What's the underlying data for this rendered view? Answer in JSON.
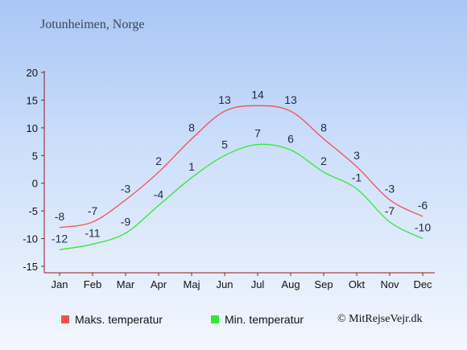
{
  "page": {
    "background_colors": [
      "#a9c6f5",
      "#f3f7fe"
    ]
  },
  "copyright": "© MitRejseVejr.dk",
  "chart_data": {
    "type": "line",
    "title": "Jotunheimen, Norge",
    "xlabel": "",
    "ylabel": "",
    "categories": [
      "Jan",
      "Feb",
      "Mar",
      "Apr",
      "Maj",
      "Jun",
      "Jul",
      "Aug",
      "Sep",
      "Okt",
      "Nov",
      "Dec"
    ],
    "ylim": [
      -15,
      20
    ],
    "yticks": [
      20,
      15,
      10,
      5,
      0,
      -5,
      -10,
      -15
    ],
    "grid": false,
    "legend_position": "bottom",
    "series": [
      {
        "name": "Maks. temperatur",
        "color": "#f25050",
        "values": [
          -8,
          -7,
          -3,
          2,
          8,
          13,
          14,
          13,
          8,
          3,
          -3,
          -6
        ]
      },
      {
        "name": "Min. temperatur",
        "color": "#32e832",
        "values": [
          -12,
          -11,
          -9,
          -4,
          1,
          5,
          7,
          6,
          2,
          -1,
          -7,
          -10
        ]
      }
    ]
  }
}
